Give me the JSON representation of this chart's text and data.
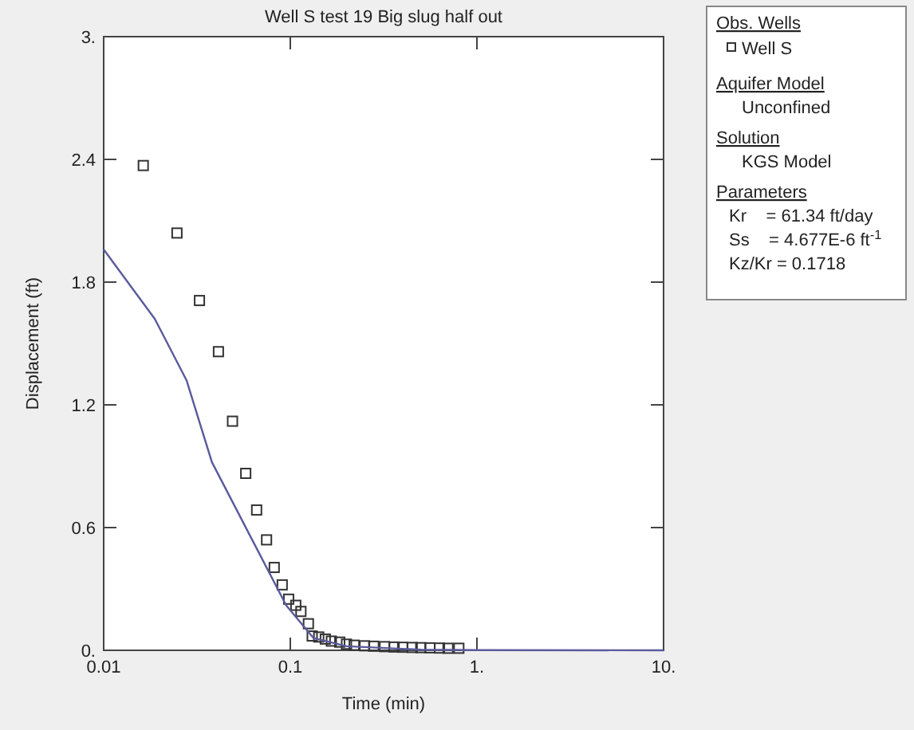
{
  "chart_data": {
    "type": "scatter",
    "title": "Well S  test 19 Big slug half out",
    "xlabel": "Time (min)",
    "ylabel": "Displacement (ft)",
    "log": "x",
    "xlim": [
      0.01,
      10
    ],
    "xticks": [
      0.01,
      0.1,
      {
        "value": 1,
        "label": "1."
      },
      {
        "value": 10,
        "label": "10."
      }
    ],
    "ylim": [
      0,
      3
    ],
    "yticks": [
      {
        "value": 0,
        "label": "0."
      },
      0.6,
      1.2,
      1.8,
      2.4,
      {
        "value": 3,
        "label": "3."
      }
    ],
    "grid": false,
    "legend": "right",
    "legend_title": "Obs. Wells",
    "annotations": [
      "Aquifer Model",
      "Unconfined",
      "Solution",
      "KGS Model",
      "Parameters",
      "Kr    = 61.34 ft/day",
      "Ss    = 4.677E-6 ft$^{-1}$",
      "Kz/Kr = 0.1718"
    ],
    "series": [
      {
        "name": "Well S",
        "marker": "square",
        "color": "#333333",
        "x": [
          0.0163,
          0.0247,
          0.0326,
          0.0412,
          0.049,
          0.0577,
          0.066,
          0.0746,
          0.082,
          0.0905,
          0.098,
          0.107,
          0.114,
          0.125,
          0.131,
          0.142,
          0.154,
          0.166,
          0.184,
          0.2,
          0.22,
          0.25,
          0.28,
          0.32,
          0.36,
          0.4,
          0.45,
          0.5,
          0.56,
          0.63,
          0.7,
          0.8
        ],
        "values": [
          2.37,
          2.04,
          1.71,
          1.46,
          1.12,
          0.865,
          0.686,
          0.54,
          0.405,
          0.32,
          0.25,
          0.22,
          0.19,
          0.13,
          0.07,
          0.065,
          0.055,
          0.045,
          0.04,
          0.03,
          0.025,
          0.022,
          0.02,
          0.018,
          0.016,
          0.015,
          0.014,
          0.013,
          0.012,
          0.011,
          0.01,
          0.01
        ]
      },
      {
        "type": "line",
        "marker": "none",
        "line_style": "solid",
        "color": "#5a5a9e",
        "x": [
          0.01,
          0.0188,
          0.0278,
          0.038,
          0.065,
          0.095,
          0.133,
          0.2,
          0.5,
          1,
          10
        ],
        "values": [
          1.96,
          1.62,
          1.32,
          0.92,
          0.51,
          0.22,
          0.06,
          0.02,
          0.003,
          0.001,
          0
        ]
      }
    ]
  }
}
